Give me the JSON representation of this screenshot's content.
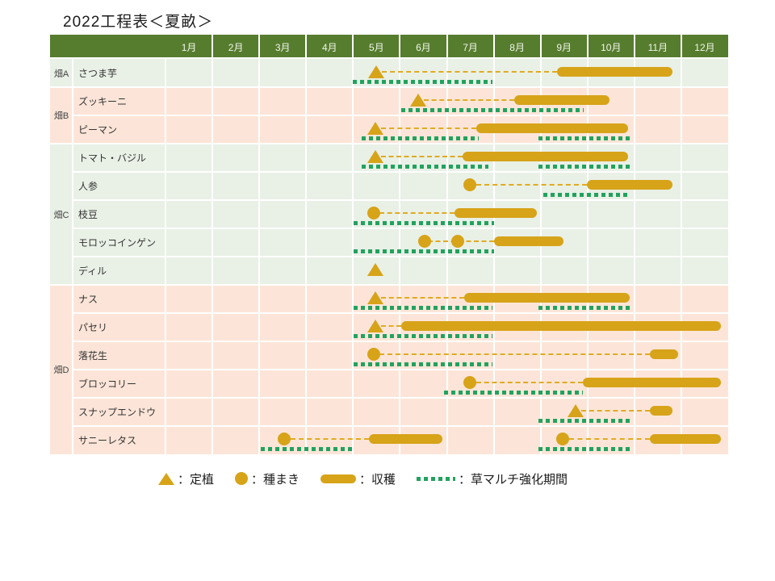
{
  "title": "2022工程表＜夏畝＞",
  "colors": {
    "header_green": "#567c2e",
    "row_green": "#e9f0e6",
    "row_pink": "#fce5d8",
    "gold": "#d7a318",
    "dashed_gold": "#dfab22",
    "mulch_green": "#22a25f",
    "grid_white": "#ffffff"
  },
  "legend": {
    "items": [
      {
        "symbol": "triangle-icon",
        "label": "：定植"
      },
      {
        "symbol": "circle-icon",
        "label": "：種まき"
      },
      {
        "symbol": "harvest-bar-icon",
        "label": "：収穫"
      },
      {
        "symbol": "mulch-dotted-icon",
        "label": "：草マルチ強化期間"
      }
    ]
  },
  "chart_data": {
    "type": "bar",
    "subtype": "gantt-schedule",
    "title": "2022工程表＜夏畝＞",
    "x_axis": {
      "unit": "month",
      "scale_note": "0 = start of 1月, 12 = end of 12月",
      "labels": [
        "1月",
        "2月",
        "3月",
        "4月",
        "5月",
        "6月",
        "7月",
        "8月",
        "9月",
        "10月",
        "11月",
        "12月"
      ]
    },
    "marker_meaning": {
      "transplant": "定植 (triangle)",
      "sow": "種まき (circle)",
      "harvest": "収穫 (bar)",
      "mulch": "草マルチ強化期間 (dotted)"
    },
    "groups": [
      {
        "label": "畑A",
        "tone": "green",
        "row_count": 1
      },
      {
        "label": "畑B",
        "tone": "pink",
        "row_count": 2
      },
      {
        "label": "畑C",
        "tone": "green",
        "row_count": 5
      },
      {
        "label": "畑D",
        "tone": "pink",
        "row_count": 6
      }
    ],
    "rows": [
      {
        "group": "畑A",
        "crop": "さつま芋",
        "markers": [
          {
            "type": "transplant",
            "month": 4.5
          }
        ],
        "dashed": [
          [
            4.62,
            8.35
          ]
        ],
        "harvest": [
          [
            8.35,
            10.81
          ]
        ],
        "mulch": [
          [
            4.0,
            6.97
          ]
        ]
      },
      {
        "group": "畑B",
        "crop": "ズッキーニ",
        "markers": [
          {
            "type": "transplant",
            "month": 5.39
          }
        ],
        "dashed": [
          [
            5.51,
            7.44
          ]
        ],
        "harvest": [
          [
            7.44,
            9.47
          ]
        ],
        "mulch": [
          [
            5.03,
            8.92
          ]
        ]
      },
      {
        "group": "畑B",
        "crop": "ピーマン",
        "markers": [
          {
            "type": "transplant",
            "month": 4.48
          }
        ],
        "dashed": [
          [
            4.6,
            6.63
          ]
        ],
        "harvest": [
          [
            6.63,
            9.86
          ]
        ],
        "mulch": [
          [
            4.18,
            6.68
          ],
          [
            7.95,
            9.9
          ]
        ]
      },
      {
        "group": "畑C",
        "crop": "トマト・バジル",
        "markers": [
          {
            "type": "transplant",
            "month": 4.48
          }
        ],
        "dashed": [
          [
            4.6,
            6.34
          ]
        ],
        "harvest": [
          [
            6.34,
            9.86
          ]
        ],
        "mulch": [
          [
            4.18,
            6.89
          ],
          [
            7.95,
            9.93
          ]
        ]
      },
      {
        "group": "畑C",
        "crop": "人参",
        "markers": [
          {
            "type": "sow",
            "month": 6.49
          }
        ],
        "dashed": [
          [
            6.62,
            8.99
          ]
        ],
        "harvest": [
          [
            8.99,
            10.81
          ]
        ],
        "mulch": [
          [
            8.06,
            9.9
          ]
        ]
      },
      {
        "group": "畑C",
        "crop": "枝豆",
        "markers": [
          {
            "type": "sow",
            "month": 4.44
          }
        ],
        "dashed": [
          [
            4.57,
            6.16
          ]
        ],
        "harvest": [
          [
            6.16,
            7.92
          ]
        ],
        "mulch": [
          [
            4.01,
            7.01
          ]
        ]
      },
      {
        "group": "畑C",
        "crop": "モロッコインゲン",
        "markers": [
          {
            "type": "sow",
            "month": 5.53
          },
          {
            "type": "sow",
            "month": 6.23
          }
        ],
        "dashed": [
          [
            5.6,
            7.01
          ]
        ],
        "harvest": [
          [
            7.01,
            8.49
          ]
        ],
        "mulch": [
          [
            4.01,
            7.01
          ]
        ]
      },
      {
        "group": "畑C",
        "crop": "ディル",
        "markers": [
          {
            "type": "transplant",
            "month": 4.48
          }
        ],
        "dashed": [],
        "harvest": [],
        "mulch": []
      },
      {
        "group": "畑D",
        "crop": "ナス",
        "markers": [
          {
            "type": "transplant",
            "month": 4.48
          }
        ],
        "dashed": [
          [
            4.6,
            6.37
          ]
        ],
        "harvest": [
          [
            6.37,
            9.9
          ]
        ],
        "mulch": [
          [
            4.01,
            6.97
          ],
          [
            7.95,
            9.93
          ]
        ]
      },
      {
        "group": "畑D",
        "crop": "パセリ",
        "markers": [
          {
            "type": "transplant",
            "month": 4.48
          }
        ],
        "dashed": [
          [
            4.6,
            5.03
          ]
        ],
        "harvest": [
          [
            5.03,
            11.84
          ]
        ],
        "mulch": [
          [
            4.01,
            6.97
          ]
        ]
      },
      {
        "group": "畑D",
        "crop": "落花生",
        "markers": [
          {
            "type": "sow",
            "month": 4.44
          }
        ],
        "dashed": [
          [
            4.57,
            10.33
          ]
        ],
        "harvest": [
          [
            10.33,
            10.93
          ]
        ],
        "mulch": [
          [
            4.01,
            6.97
          ]
        ]
      },
      {
        "group": "畑D",
        "crop": "ブロッコリー",
        "markers": [
          {
            "type": "sow",
            "month": 6.49
          }
        ],
        "dashed": [
          [
            6.62,
            8.9
          ]
        ],
        "harvest": [
          [
            8.9,
            11.84
          ]
        ],
        "mulch": [
          [
            5.94,
            8.9
          ]
        ]
      },
      {
        "group": "畑D",
        "crop": "スナップエンドウ",
        "markers": [
          {
            "type": "transplant",
            "month": 8.75
          }
        ],
        "dashed": [
          [
            8.87,
            10.33
          ]
        ],
        "harvest": [
          [
            10.33,
            10.81
          ]
        ],
        "mulch": [
          [
            7.95,
            9.9
          ]
        ]
      },
      {
        "group": "畑D",
        "crop": "サニーレタス",
        "markers": [
          {
            "type": "sow",
            "month": 2.53
          },
          {
            "type": "sow",
            "month": 8.47
          }
        ],
        "dashed": [
          [
            2.66,
            4.34
          ],
          [
            8.6,
            10.33
          ]
        ],
        "harvest": [
          [
            4.34,
            5.9
          ],
          [
            10.33,
            11.84
          ]
        ],
        "mulch": [
          [
            2.03,
            3.99
          ],
          [
            7.95,
            9.9
          ]
        ]
      }
    ]
  }
}
